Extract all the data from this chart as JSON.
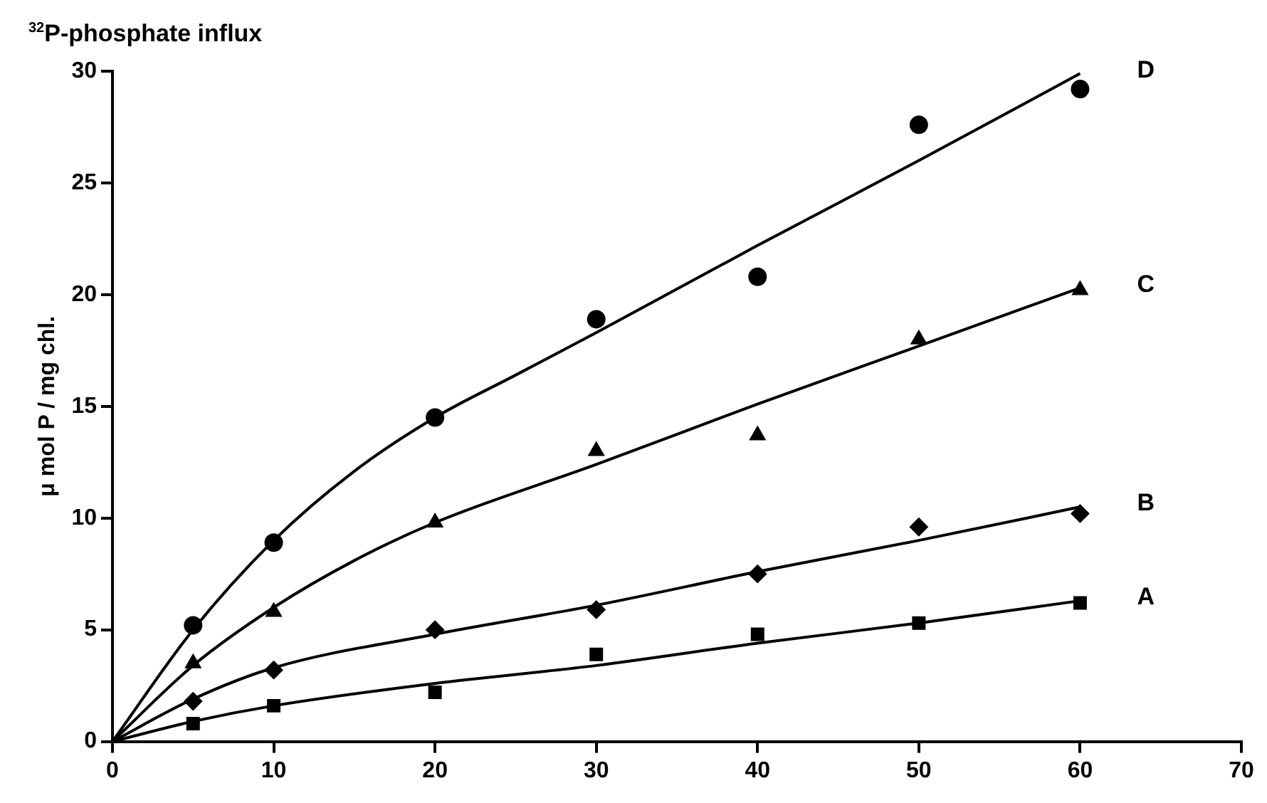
{
  "chart_data": {
    "type": "scatter",
    "title": "$^{32}$P-phosphate influx",
    "ylabel": "μ mol P / mg chl.",
    "xlim": [
      0,
      70
    ],
    "xticks": [
      0,
      10,
      20,
      30,
      40,
      50,
      60,
      70
    ],
    "ylim": [
      0,
      30
    ],
    "yticks": [
      0,
      5,
      10,
      15,
      20,
      25,
      30
    ],
    "grid": false,
    "legend": false,
    "series": [
      {
        "type": "scatter",
        "color": "#000000",
        "marker": "circle",
        "x": [
          5,
          10,
          20,
          30,
          40,
          50,
          60
        ],
        "values": [
          5.2,
          8.9,
          14.5,
          18.9,
          20.8,
          27.6,
          29.2
        ]
      },
      {
        "type": "scatter",
        "color": "#000000",
        "marker": "triangle",
        "x": [
          5,
          10,
          20,
          30,
          40,
          50,
          60
        ],
        "values": [
          3.5,
          5.8,
          9.8,
          13.0,
          13.7,
          18.0,
          20.2
        ]
      },
      {
        "type": "scatter",
        "color": "#000000",
        "marker": "diamond",
        "x": [
          5,
          10,
          20,
          30,
          40,
          50,
          60
        ],
        "values": [
          1.8,
          3.2,
          5.0,
          5.9,
          7.5,
          9.6,
          10.2
        ]
      },
      {
        "type": "scatter",
        "color": "#000000",
        "marker": "square",
        "x": [
          5,
          10,
          20,
          30,
          40,
          50,
          60
        ],
        "values": [
          0.8,
          1.6,
          2.2,
          3.9,
          4.8,
          5.3,
          6.2
        ]
      },
      {
        "type": "line",
        "name": "D",
        "color": "#000000",
        "marker": "none",
        "x": [
          0,
          5,
          10,
          15,
          20,
          25,
          30,
          40,
          50,
          60
        ],
        "values": [
          0,
          5,
          9,
          12.1,
          14.5,
          16.4,
          18.3,
          22.2,
          26,
          29.9
        ]
      },
      {
        "type": "line",
        "name": "C",
        "color": "#000000",
        "marker": "none",
        "x": [
          0,
          5,
          10,
          15,
          20,
          30,
          40,
          50,
          60
        ],
        "values": [
          0,
          3.4,
          6,
          8.1,
          9.8,
          12.4,
          15.1,
          17.7,
          20.3
        ]
      },
      {
        "type": "line",
        "name": "B",
        "color": "#000000",
        "marker": "none",
        "x": [
          0,
          5,
          10,
          20,
          30,
          40,
          50,
          60
        ],
        "values": [
          0,
          1.9,
          3.3,
          4.8,
          6.1,
          7.6,
          9,
          10.5
        ]
      },
      {
        "type": "line",
        "name": "A",
        "color": "#000000",
        "marker": "none",
        "x": [
          0,
          5,
          10,
          20,
          30,
          40,
          50,
          60
        ],
        "values": [
          0,
          0.9,
          1.6,
          2.6,
          3.4,
          4.4,
          5.3,
          6.3
        ]
      }
    ]
  }
}
